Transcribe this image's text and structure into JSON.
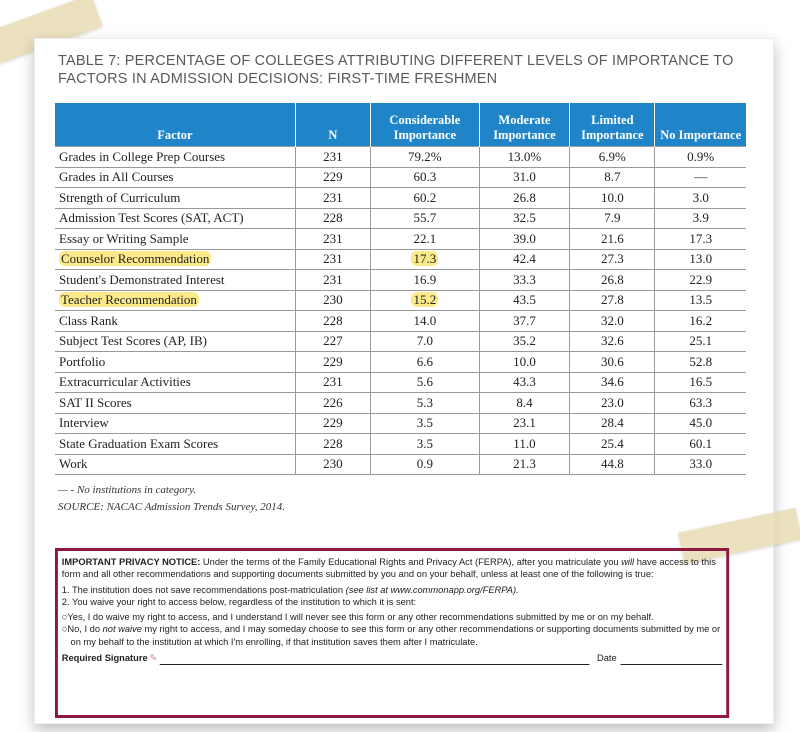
{
  "title": "TABLE 7: PERCENTAGE OF COLLEGES ATTRIBUTING DIFFERENT LEVELS OF IMPORTANCE TO FACTORS IN ADMISSION DECISIONS: FIRST-TIME FRESHMEN",
  "headers": [
    "Factor",
    "N",
    "Considerable Importance",
    "Moderate Importance",
    "Limited Importance",
    "No Importance"
  ],
  "rows": [
    [
      "Grades in College Prep Courses",
      "231",
      "79.2%",
      "13.0%",
      "6.9%",
      "0.9%"
    ],
    [
      "Grades in All Courses",
      "229",
      "60.3",
      "31.0",
      "8.7",
      "—"
    ],
    [
      "Strength of Curriculum",
      "231",
      "60.2",
      "26.8",
      "10.0",
      "3.0"
    ],
    [
      "Admission Test Scores (SAT, ACT)",
      "228",
      "55.7",
      "32.5",
      "7.9",
      "3.9"
    ],
    [
      "Essay or Writing Sample",
      "231",
      "22.1",
      "39.0",
      "21.6",
      "17.3"
    ],
    [
      "Counselor Recommendation",
      "231",
      "17.3",
      "42.4",
      "27.3",
      "13.0"
    ],
    [
      "Student's Demonstrated Interest",
      "231",
      "16.9",
      "33.3",
      "26.8",
      "22.9"
    ],
    [
      "Teacher Recommendation",
      "230",
      "15.2",
      "43.5",
      "27.8",
      "13.5"
    ],
    [
      "Class Rank",
      "228",
      "14.0",
      "37.7",
      "32.0",
      "16.2"
    ],
    [
      "Subject Test Scores (AP, IB)",
      "227",
      "7.0",
      "35.2",
      "32.6",
      "25.1"
    ],
    [
      "Portfolio",
      "229",
      "6.6",
      "10.0",
      "30.6",
      "52.8"
    ],
    [
      "Extracurricular Activities",
      "231",
      "5.6",
      "43.3",
      "34.6",
      "16.5"
    ],
    [
      "SAT II Scores",
      "226",
      "5.3",
      "8.4",
      "23.0",
      "63.3"
    ],
    [
      "Interview",
      "229",
      "3.5",
      "23.1",
      "28.4",
      "45.0"
    ],
    [
      "State Graduation Exam Scores",
      "228",
      "3.5",
      "11.0",
      "25.4",
      "60.1"
    ],
    [
      "Work",
      "230",
      "0.9",
      "21.3",
      "44.8",
      "33.0"
    ]
  ],
  "highlighted_rows": [
    5,
    7
  ],
  "highlight_color": "#fbe98a",
  "header_color": "#1f85c8",
  "footnote": "— - No institutions in category.",
  "source": "SOURCE: NACAC Admission Trends Survey, 2014.",
  "notice": {
    "lead": "IMPORTANT PRIVACY NOTICE:",
    "p1a": " Under the terms of the Family Educational Rights and Privacy Act (FERPA), after you matriculate you ",
    "p1will": "will",
    "p1b": " have access to this form and all other recommendations and supporting documents submitted by you and on your behalf, unless at least one of the following is true:",
    "item1": "1. The institution does not save recommendations post-matriculation ",
    "item1note": "(see list at www.commonapp.org/FERPA).",
    "item2": "2. You waive your right to access below, regardless of the institution to which it is sent:",
    "opt_yes": "Yes, I do waive my right to access, and I understand I will never see this form or any other recommendations submitted by me or on my behalf.",
    "opt_no_a": "No, I do ",
    "opt_no_em": "not waive",
    "opt_no_b": " my right to access, and I may someday choose to see this form or any other recommendations or supporting documents submitted by me or on my behalf to the institution at which I'm enrolling, if that institution saves them after I matriculate.",
    "signature": "Required Signature",
    "date": "Date"
  }
}
